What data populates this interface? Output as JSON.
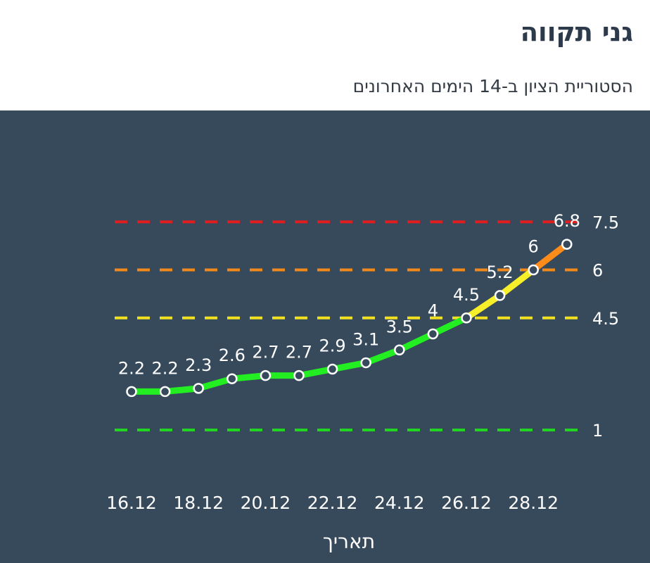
{
  "header": {
    "title": "גני תקווה",
    "subtitle": "הסטוריית הציון ב-14 הימים האחרונים"
  },
  "chart_data": {
    "type": "line",
    "title": "",
    "xlabel": "תאריך",
    "ylabel": "",
    "x": [
      "16.12",
      "17.12",
      "18.12",
      "19.12",
      "20.12",
      "21.12",
      "22.12",
      "23.12",
      "24.12",
      "25.12",
      "26.12",
      "27.12",
      "28.12",
      "29.12"
    ],
    "x_tick_labels": [
      "16.12",
      "18.12",
      "20.12",
      "22.12",
      "24.12",
      "26.12",
      "28.12"
    ],
    "data_labels": [
      "2.2",
      "2.2",
      "2.3",
      "2.6",
      "2.7",
      "2.7",
      "2.9",
      "3.1",
      "3.5",
      "4",
      "4.5",
      "5.2",
      "6",
      "6.8"
    ],
    "series": [
      {
        "values": [
          2.2,
          2.2,
          2.3,
          2.6,
          2.7,
          2.7,
          2.9,
          3.1,
          3.5,
          4,
          4.5,
          5.2,
          6,
          6.8
        ]
      }
    ],
    "thresholds": [
      {
        "value": 1,
        "label": "1",
        "color": "#22d422"
      },
      {
        "value": 4.5,
        "label": "4.5",
        "color": "#f0e020"
      },
      {
        "value": 6,
        "label": "6",
        "color": "#f08a1c"
      },
      {
        "value": 7.5,
        "label": "7.5",
        "color": "#e01e1e"
      }
    ],
    "segment_colors": {
      "green": "#22ee22",
      "yellow": "#f7ef2a",
      "orange": "#ff8c1a"
    },
    "ylim": [
      1,
      7.5
    ],
    "grid": false,
    "legend": "none"
  }
}
